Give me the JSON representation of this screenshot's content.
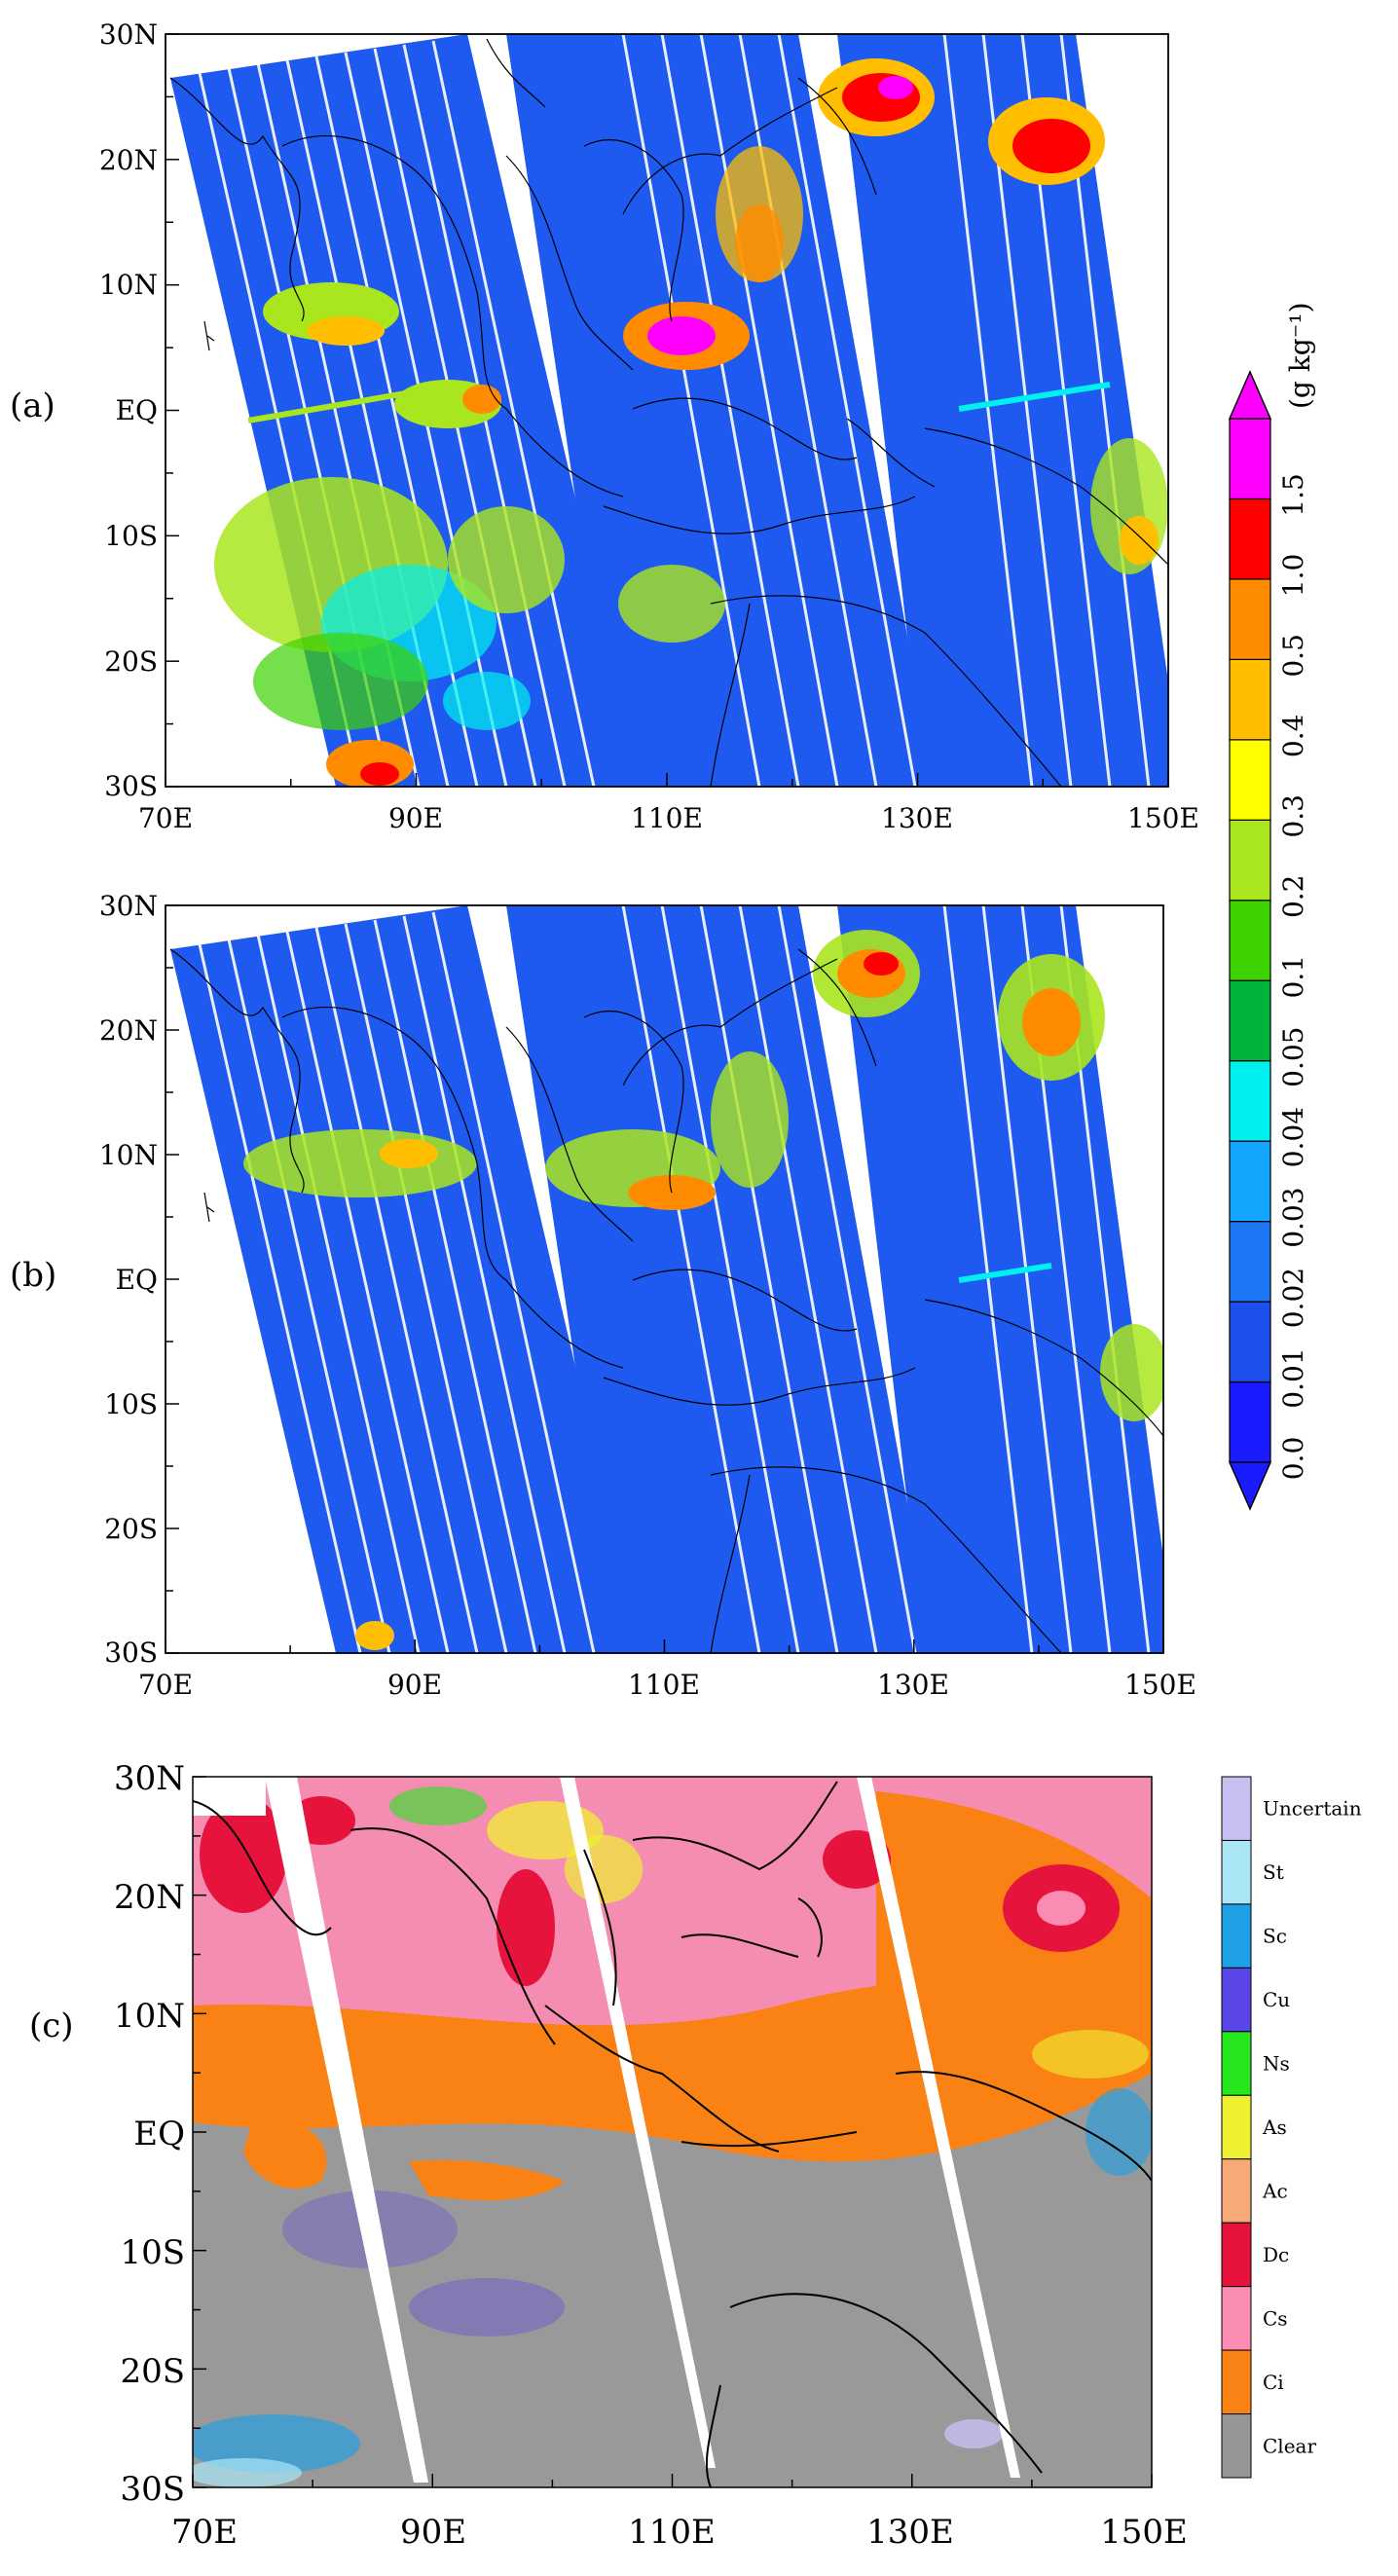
{
  "panels": [
    {
      "id": "a",
      "label": "(a)",
      "lat_labels": [
        "30N",
        "20N",
        "10N",
        "EQ",
        "10S",
        "20S",
        "30S"
      ],
      "lon_labels": [
        "70E",
        "90E",
        "110E",
        "130E",
        "150E"
      ]
    },
    {
      "id": "b",
      "label": "(b)",
      "lat_labels": [
        "30N",
        "20N",
        "10N",
        "EQ",
        "10S",
        "20S",
        "30S"
      ],
      "lon_labels": [
        "70E",
        "90E",
        "110E",
        "130E",
        "150E"
      ]
    },
    {
      "id": "c",
      "label": "(c)",
      "lat_labels": [
        "30N",
        "20N",
        "10N",
        "EQ",
        "10S",
        "20S",
        "30S"
      ],
      "lon_labels": [
        "70E",
        "90E",
        "110E",
        "130E",
        "150E"
      ]
    }
  ],
  "colorbar": {
    "unit": "(g kg⁻¹)",
    "ticks": [
      "0.0",
      "0.01",
      "0.02",
      "0.03",
      "0.04",
      "0.05",
      "0.1",
      "0.2",
      "0.3",
      "0.4",
      "0.5",
      "1.0",
      "1.5"
    ],
    "colors": [
      "#1a1aff",
      "#1e50f0",
      "#1e78f5",
      "#14a5ff",
      "#00f0f0",
      "#00b43c",
      "#3cd200",
      "#aae61e",
      "#ffff00",
      "#ffbe00",
      "#ff8c00",
      "#ff0000",
      "#ff00ff"
    ]
  },
  "cloud_legend": {
    "types": [
      "Uncertain",
      "St",
      "Sc",
      "Cu",
      "Ns",
      "As",
      "Ac",
      "Dc",
      "Cs",
      "Ci",
      "Clear"
    ],
    "colors": [
      "#c8bef0",
      "#aae6f5",
      "#1ea0e6",
      "#5a46e6",
      "#28e61e",
      "#f0f032",
      "#f5aa78",
      "#e6143c",
      "#fa8cb4",
      "#fa8214",
      "#969696"
    ]
  },
  "colors": {
    "swath_base": "#1e5af0",
    "clear_gray": "#999999"
  }
}
